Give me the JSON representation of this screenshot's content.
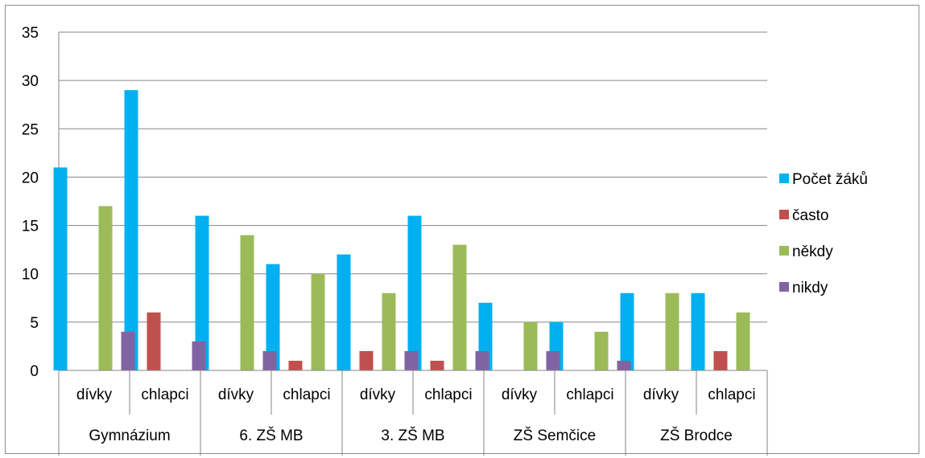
{
  "chart_data": {
    "type": "bar",
    "groups": [
      "Gymnázium",
      "6. ZŠ MB",
      "3. ZŠ MB",
      "ZŠ Semčice",
      "ZŠ Brodce"
    ],
    "subcategories": [
      "dívky",
      "chlapci"
    ],
    "categories": [
      "Gymnázium dívky",
      "Gymnázium chlapci",
      "6. ZŠ MB dívky",
      "6. ZŠ MB chlapci",
      "3. ZŠ MB dívky",
      "3. ZŠ MB chlapci",
      "ZŠ Semčice dívky",
      "ZŠ Semčice chlapci",
      "ZŠ Brodce dívky",
      "ZŠ Brodce chlapci"
    ],
    "series": [
      {
        "name": "Počet žáků",
        "color": "#00B0F0",
        "values": [
          21,
          29,
          16,
          11,
          12,
          16,
          7,
          5,
          8,
          8
        ]
      },
      {
        "name": "často",
        "color": "#C0504D",
        "values": [
          0,
          6,
          0,
          1,
          2,
          1,
          0,
          0,
          0,
          2
        ]
      },
      {
        "name": "někdy",
        "color": "#9BBB59",
        "values": [
          17,
          0,
          14,
          10,
          8,
          13,
          5,
          4,
          8,
          6
        ]
      },
      {
        "name": "nikdy",
        "color": "#8064A2",
        "values": [
          4,
          3,
          2,
          0,
          2,
          2,
          2,
          1,
          0,
          0
        ]
      }
    ],
    "ylim": [
      0,
      35
    ],
    "yticks": [
      0,
      5,
      10,
      15,
      20,
      25,
      30,
      35
    ],
    "grid": true,
    "legend": "right",
    "title": "",
    "xlabel": "",
    "ylabel": ""
  }
}
